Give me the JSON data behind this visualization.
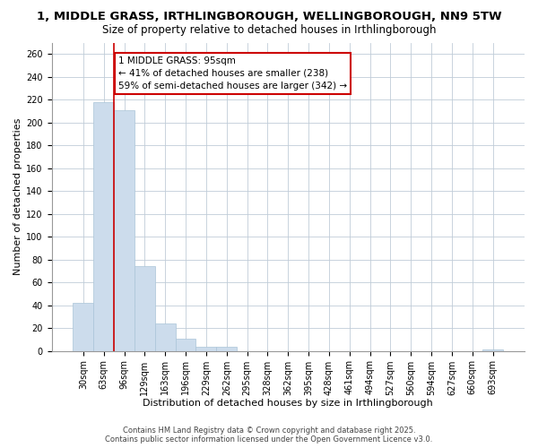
{
  "title": "1, MIDDLE GRASS, IRTHLINGBOROUGH, WELLINGBOROUGH, NN9 5TW",
  "subtitle": "Size of property relative to detached houses in Irthlingborough",
  "xlabel": "Distribution of detached houses by size in Irthlingborough",
  "ylabel": "Number of detached properties",
  "bar_labels": [
    "30sqm",
    "63sqm",
    "96sqm",
    "129sqm",
    "163sqm",
    "196sqm",
    "229sqm",
    "262sqm",
    "295sqm",
    "328sqm",
    "362sqm",
    "395sqm",
    "428sqm",
    "461sqm",
    "494sqm",
    "527sqm",
    "560sqm",
    "594sqm",
    "627sqm",
    "660sqm",
    "693sqm"
  ],
  "bar_values": [
    42,
    218,
    211,
    74,
    24,
    11,
    4,
    4,
    0,
    0,
    0,
    0,
    0,
    0,
    0,
    0,
    0,
    0,
    0,
    0,
    1
  ],
  "bar_color": "#ccdcec",
  "bar_edge_color": "#aac4d8",
  "property_line_color": "#cc0000",
  "ylim": [
    0,
    270
  ],
  "yticks": [
    0,
    20,
    40,
    60,
    80,
    100,
    120,
    140,
    160,
    180,
    200,
    220,
    240,
    260
  ],
  "annotation_title": "1 MIDDLE GRASS: 95sqm",
  "annotation_line1": "← 41% of detached houses are smaller (238)",
  "annotation_line2": "59% of semi-detached houses are larger (342) →",
  "annotation_box_color": "#ffffff",
  "annotation_box_edge_color": "#cc0000",
  "footnote1": "Contains HM Land Registry data © Crown copyright and database right 2025.",
  "footnote2": "Contains public sector information licensed under the Open Government Licence v3.0.",
  "background_color": "#ffffff",
  "grid_color": "#c0ccd8",
  "title_fontsize": 9.5,
  "subtitle_fontsize": 8.5,
  "axis_label_fontsize": 8,
  "tick_fontsize": 7,
  "annotation_fontsize": 7.5,
  "footnote_fontsize": 6
}
